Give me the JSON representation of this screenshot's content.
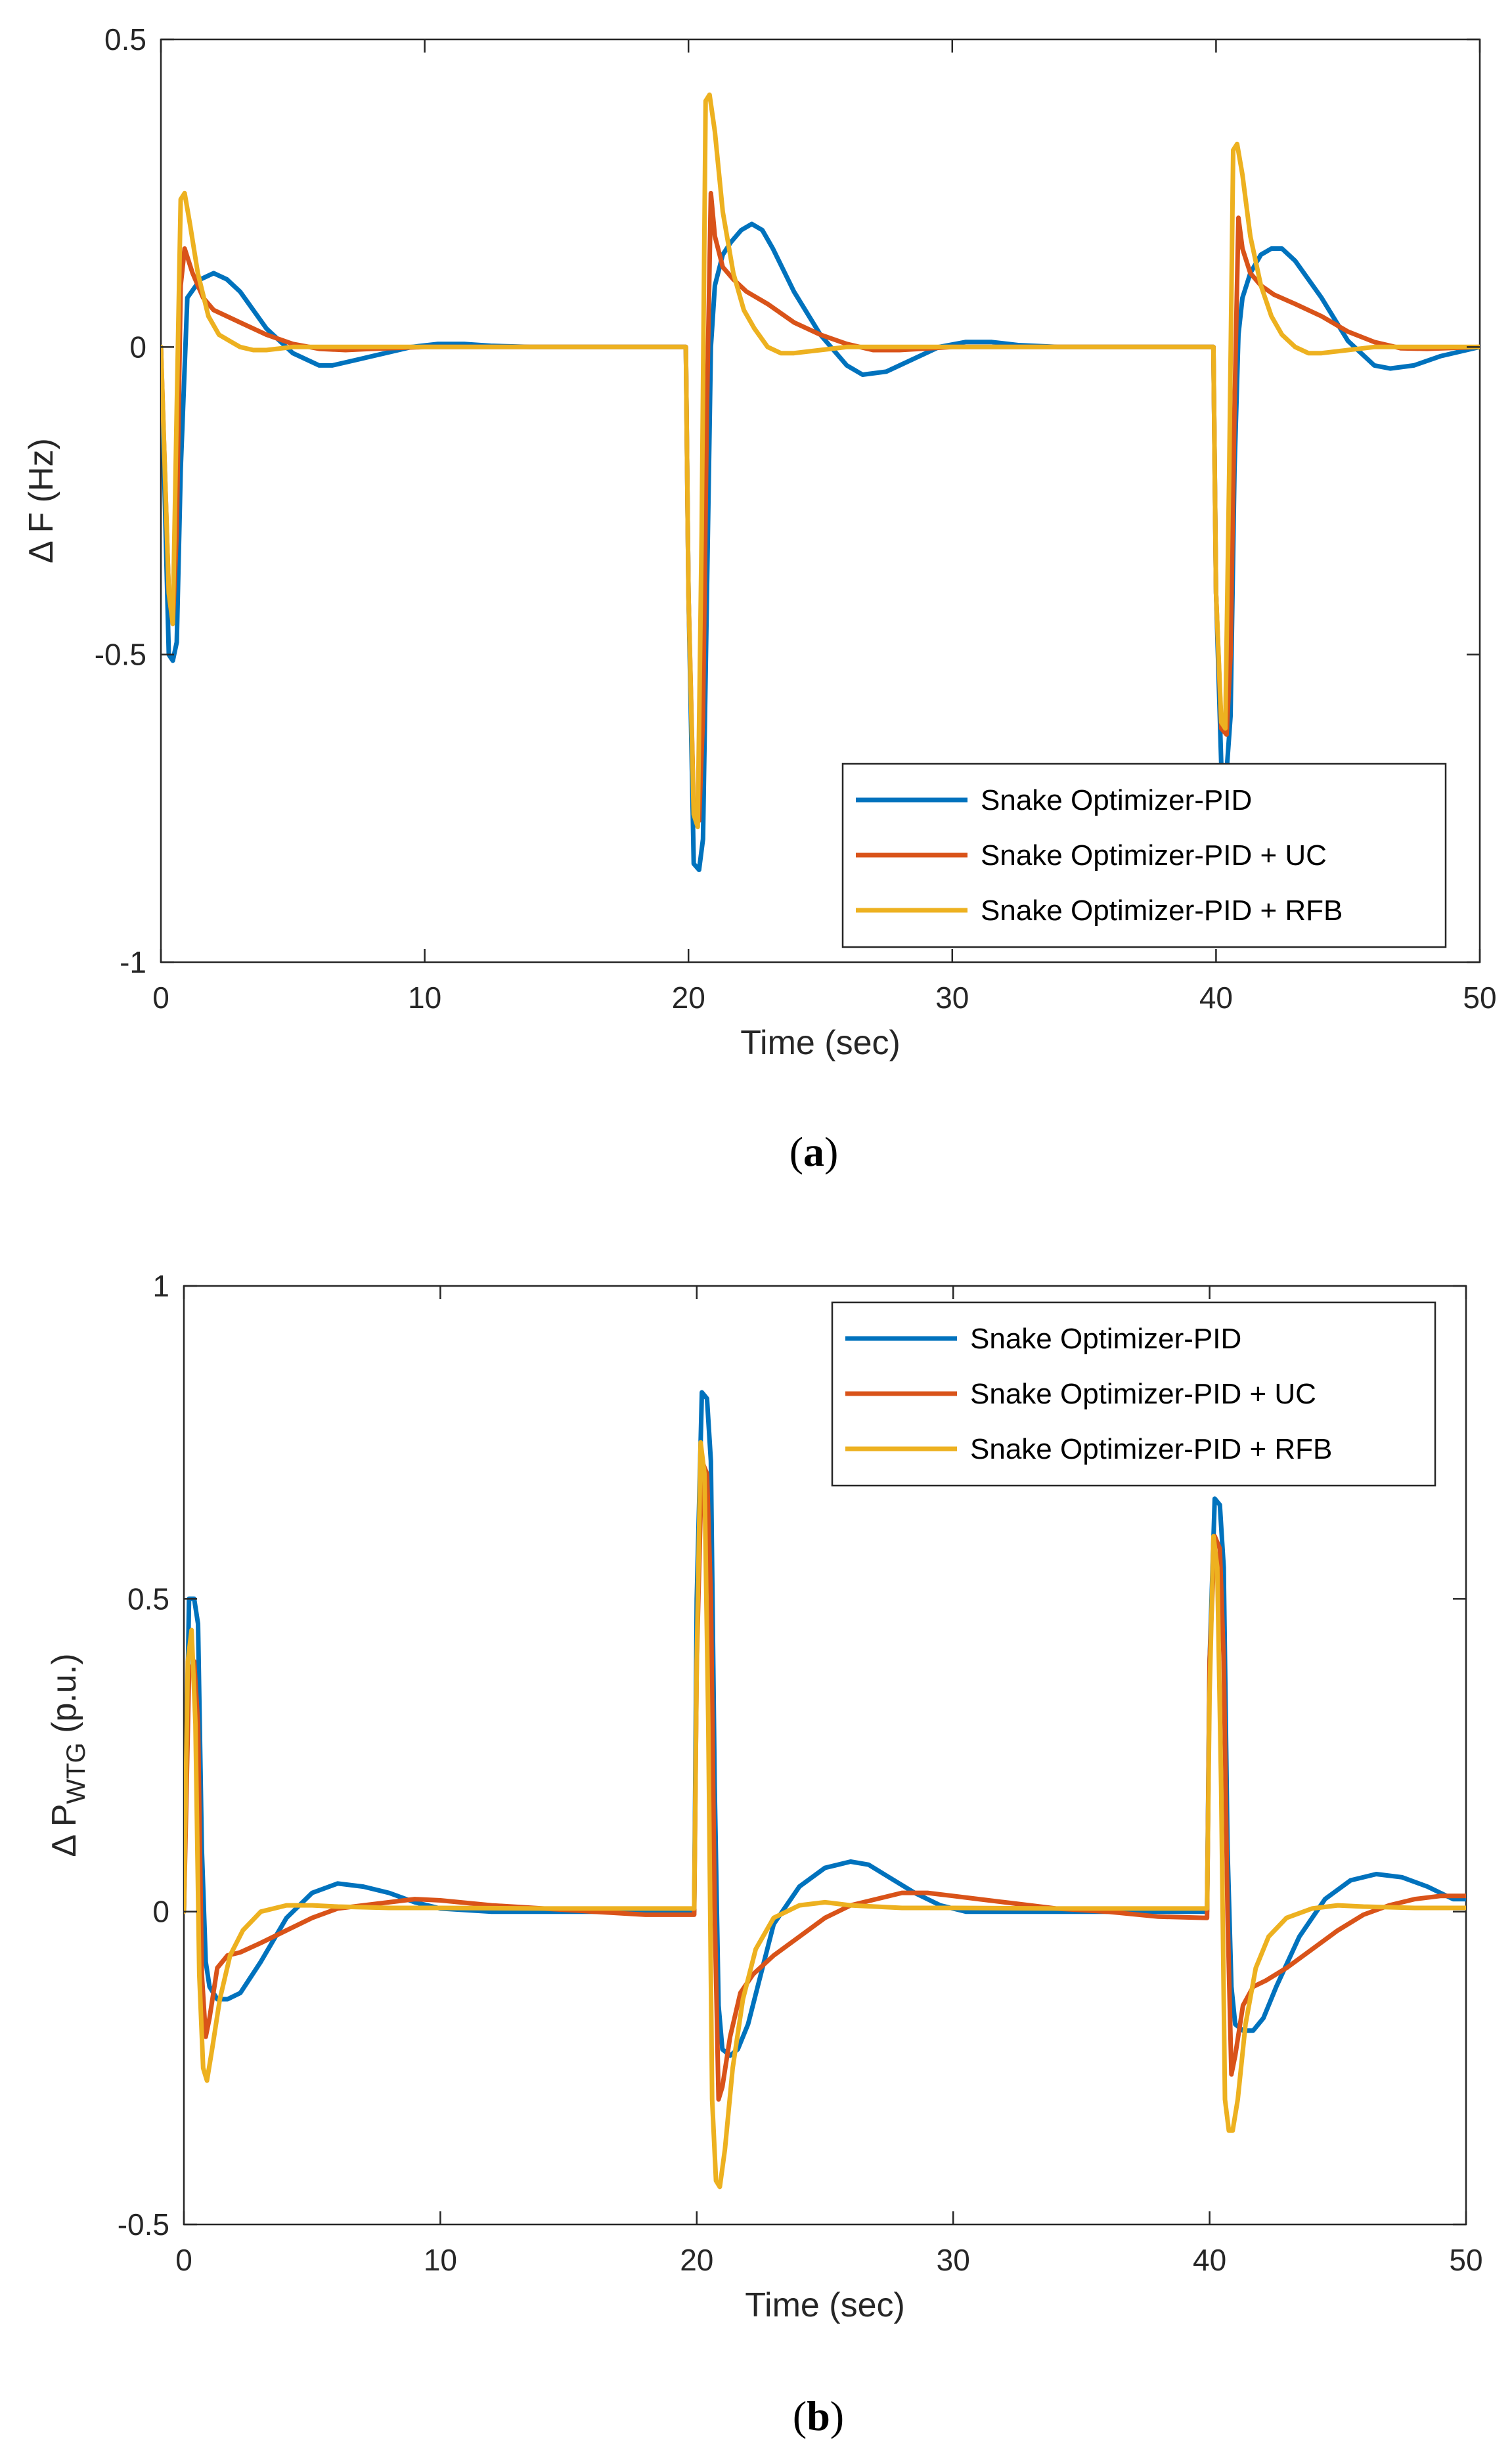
{
  "chart_data": [
    {
      "type": "line",
      "panel_label_open": "(",
      "panel_label_letter": "a",
      "panel_label_close": ")",
      "xlabel": "Time (sec)",
      "ylabel": "Δ F (Hz)",
      "ylabel_sub": "",
      "xlim": [
        0,
        50
      ],
      "ylim": [
        -1,
        0.5
      ],
      "xticks": [
        0,
        10,
        20,
        30,
        40,
        50
      ],
      "xtick_labels": [
        "0",
        "10",
        "20",
        "30",
        "40",
        "50"
      ],
      "yticks": [
        -1,
        -0.5,
        0,
        0.5
      ],
      "ytick_labels": [
        "-1",
        "-0.5",
        "0",
        "0.5"
      ],
      "legend_position": "bottom-right",
      "series": [
        {
          "name": "Snake Optimizer-PID",
          "color": "#0072BD",
          "x": [
            0,
            0.3,
            0.45,
            0.6,
            0.75,
            1.0,
            1.5,
            2.0,
            2.5,
            3.0,
            3.5,
            4.0,
            5.0,
            6.0,
            6.5,
            7.5,
            8.5,
            9.5,
            10.5,
            11.5,
            12.5,
            14,
            16,
            18,
            19.9,
            20.0,
            20.2,
            20.4,
            20.55,
            20.7,
            20.85,
            21.0,
            21.3,
            21.6,
            22.0,
            22.4,
            22.8,
            23.2,
            24,
            25,
            26,
            26.6,
            27.5,
            28.5,
            29.5,
            30.5,
            31.5,
            32.5,
            34,
            36,
            38,
            39.9,
            40.0,
            40.2,
            40.4,
            40.55,
            40.7,
            40.85,
            41.0,
            41.3,
            41.7,
            42.1,
            42.5,
            43,
            44,
            45,
            46,
            46.6,
            47.5,
            48.5,
            49.5,
            50
          ],
          "y": [
            0,
            -0.5,
            -0.51,
            -0.48,
            -0.2,
            0.08,
            0.11,
            0.12,
            0.11,
            0.09,
            0.06,
            0.03,
            -0.01,
            -0.03,
            -0.03,
            -0.02,
            -0.01,
            0.0,
            0.005,
            0.005,
            0.002,
            0,
            0,
            0,
            0,
            -0.4,
            -0.84,
            -0.85,
            -0.8,
            -0.4,
            0.0,
            0.1,
            0.15,
            0.17,
            0.19,
            0.2,
            0.19,
            0.16,
            0.09,
            0.02,
            -0.03,
            -0.045,
            -0.04,
            -0.02,
            0.0,
            0.008,
            0.008,
            0.003,
            0,
            0,
            0,
            0,
            -0.4,
            -0.68,
            -0.69,
            -0.6,
            -0.2,
            0.02,
            0.08,
            0.12,
            0.15,
            0.16,
            0.16,
            0.14,
            0.08,
            0.01,
            -0.03,
            -0.035,
            -0.03,
            -0.015,
            -0.005,
            0
          ]
        },
        {
          "name": "Snake Optimizer-PID + UC",
          "color": "#D95319",
          "x": [
            0,
            0.3,
            0.45,
            0.6,
            0.75,
            0.9,
            1.2,
            1.6,
            2.0,
            3.0,
            4.0,
            5.0,
            6.0,
            7.0,
            8.0,
            10,
            14,
            18,
            19.9,
            20.0,
            20.2,
            20.4,
            20.55,
            20.7,
            20.85,
            21.0,
            21.3,
            21.7,
            22.2,
            23,
            24,
            25,
            26,
            27,
            28,
            30,
            34,
            38,
            39.9,
            40.0,
            40.2,
            40.4,
            40.55,
            40.7,
            40.85,
            41.0,
            41.3,
            41.7,
            42.2,
            43,
            44,
            45,
            46,
            47,
            48,
            50
          ],
          "y": [
            0,
            -0.4,
            -0.45,
            -0.3,
            0.1,
            0.16,
            0.12,
            0.08,
            0.06,
            0.04,
            0.02,
            0.005,
            -0.003,
            -0.005,
            -0.003,
            0,
            0,
            0,
            0,
            -0.4,
            -0.75,
            -0.77,
            -0.6,
            -0.1,
            0.25,
            0.18,
            0.13,
            0.11,
            0.09,
            0.07,
            0.04,
            0.02,
            0.005,
            -0.005,
            -0.005,
            0,
            0,
            0,
            0,
            -0.4,
            -0.62,
            -0.63,
            -0.5,
            -0.1,
            0.21,
            0.16,
            0.12,
            0.1,
            0.085,
            0.07,
            0.05,
            0.025,
            0.008,
            -0.002,
            -0.003,
            0
          ]
        },
        {
          "name": "Snake Optimizer-PID + RFB",
          "color": "#EDB120",
          "x": [
            0,
            0.3,
            0.45,
            0.6,
            0.75,
            0.9,
            1.1,
            1.4,
            1.8,
            2.2,
            2.6,
            3.0,
            3.5,
            4.0,
            5.0,
            6.0,
            8,
            10,
            14,
            18,
            19.9,
            20.0,
            20.2,
            20.35,
            20.5,
            20.65,
            20.8,
            21.0,
            21.3,
            21.7,
            22.1,
            22.5,
            23,
            23.5,
            24,
            25,
            26,
            28,
            30,
            34,
            38,
            39.9,
            40.0,
            40.2,
            40.35,
            40.5,
            40.65,
            40.8,
            41.0,
            41.3,
            41.7,
            42.1,
            42.5,
            43,
            43.5,
            44,
            45,
            46,
            48,
            50
          ],
          "y": [
            0,
            -0.4,
            -0.45,
            -0.1,
            0.24,
            0.25,
            0.2,
            0.12,
            0.05,
            0.02,
            0.01,
            0.0,
            -0.005,
            -0.005,
            0,
            0,
            0,
            0,
            0,
            0,
            0,
            -0.4,
            -0.76,
            -0.78,
            -0.3,
            0.4,
            0.41,
            0.35,
            0.22,
            0.12,
            0.06,
            0.03,
            0.0,
            -0.01,
            -0.01,
            -0.005,
            0,
            0,
            0,
            0,
            0,
            0,
            -0.4,
            -0.61,
            -0.62,
            -0.2,
            0.32,
            0.33,
            0.28,
            0.18,
            0.1,
            0.05,
            0.02,
            0.0,
            -0.01,
            -0.01,
            -0.005,
            0,
            0,
            0
          ]
        }
      ]
    },
    {
      "type": "line",
      "panel_label_open": "(",
      "panel_label_letter": "b",
      "panel_label_close": ")",
      "xlabel": "Time (sec)",
      "ylabel": "Δ P",
      "ylabel_sub": "WTG",
      "ylabel_after": " (p.u.)",
      "xlim": [
        0,
        50
      ],
      "ylim": [
        -0.5,
        1
      ],
      "xticks": [
        0,
        10,
        20,
        30,
        40,
        50
      ],
      "xtick_labels": [
        "0",
        "10",
        "20",
        "30",
        "40",
        "50"
      ],
      "yticks": [
        -0.5,
        0,
        0.5,
        1
      ],
      "ytick_labels": [
        "-0.5",
        "0",
        "0.5",
        "1"
      ],
      "legend_position": "top-right",
      "series": [
        {
          "name": "Snake Optimizer-PID",
          "color": "#0072BD",
          "x": [
            0,
            0.2,
            0.4,
            0.55,
            0.7,
            0.85,
            1.0,
            1.3,
            1.7,
            2.2,
            3,
            4,
            5,
            6,
            7,
            8,
            9,
            10,
            12,
            14,
            16,
            18,
            19.9,
            20.0,
            20.2,
            20.4,
            20.55,
            20.7,
            20.85,
            21.0,
            21.3,
            21.6,
            22,
            22.5,
            23,
            24,
            25,
            26,
            26.7,
            27.5,
            28.5,
            29.5,
            30.5,
            32,
            34,
            36,
            38,
            39.9,
            40.0,
            40.2,
            40.4,
            40.55,
            40.7,
            40.85,
            41.0,
            41.3,
            41.7,
            42.1,
            42.6,
            43.5,
            44.5,
            45.5,
            46.5,
            47.5,
            48.5,
            49.5,
            50
          ],
          "y": [
            0,
            0.5,
            0.5,
            0.46,
            0.1,
            -0.08,
            -0.12,
            -0.14,
            -0.14,
            -0.13,
            -0.08,
            -0.01,
            0.03,
            0.045,
            0.04,
            0.03,
            0.015,
            0.005,
            0,
            0,
            0,
            0,
            0,
            0.5,
            0.83,
            0.82,
            0.72,
            0.2,
            -0.15,
            -0.22,
            -0.23,
            -0.22,
            -0.18,
            -0.1,
            -0.02,
            0.04,
            0.07,
            0.08,
            0.075,
            0.055,
            0.03,
            0.01,
            0,
            0,
            0,
            0,
            0,
            0,
            0.4,
            0.66,
            0.65,
            0.55,
            0.1,
            -0.12,
            -0.18,
            -0.19,
            -0.19,
            -0.17,
            -0.12,
            -0.04,
            0.02,
            0.05,
            0.06,
            0.055,
            0.04,
            0.02,
            0.02
          ]
        },
        {
          "name": "Snake Optimizer-PID + UC",
          "color": "#D95319",
          "x": [
            0,
            0.2,
            0.4,
            0.55,
            0.7,
            0.85,
            1.0,
            1.3,
            1.7,
            2.2,
            3,
            4,
            5,
            6,
            7,
            8,
            9,
            10,
            12,
            14,
            16,
            18,
            19.9,
            20.0,
            20.2,
            20.4,
            20.55,
            20.7,
            20.85,
            21.0,
            21.3,
            21.7,
            22.2,
            23,
            24,
            25,
            26,
            27,
            28,
            29,
            30,
            31,
            32,
            34,
            36,
            38,
            39.9,
            40.0,
            40.2,
            40.4,
            40.55,
            40.7,
            40.85,
            41.0,
            41.3,
            41.7,
            42.2,
            43,
            44,
            45,
            46,
            47,
            48,
            49,
            50
          ],
          "y": [
            0,
            0.38,
            0.4,
            0.3,
            -0.1,
            -0.2,
            -0.17,
            -0.09,
            -0.07,
            -0.065,
            -0.05,
            -0.03,
            -0.01,
            0.005,
            0.01,
            0.015,
            0.02,
            0.018,
            0.01,
            0.005,
            0,
            -0.005,
            -0.005,
            0.4,
            0.72,
            0.7,
            0.5,
            0,
            -0.3,
            -0.28,
            -0.2,
            -0.13,
            -0.1,
            -0.07,
            -0.04,
            -0.01,
            0.01,
            0.02,
            0.03,
            0.03,
            0.025,
            0.02,
            0.015,
            0.005,
            0,
            -0.008,
            -0.01,
            0.4,
            0.6,
            0.58,
            0.4,
            0,
            -0.26,
            -0.23,
            -0.15,
            -0.12,
            -0.11,
            -0.09,
            -0.06,
            -0.03,
            -0.005,
            0.01,
            0.02,
            0.025,
            0.025
          ]
        },
        {
          "name": "Snake Optimizer-PID + RFB",
          "color": "#EDB120",
          "x": [
            0,
            0.15,
            0.3,
            0.45,
            0.6,
            0.75,
            0.9,
            1.1,
            1.4,
            1.8,
            2.3,
            3,
            4,
            5,
            6,
            8,
            10,
            14,
            18,
            19.9,
            20.0,
            20.15,
            20.3,
            20.45,
            20.6,
            20.75,
            20.9,
            21.1,
            21.4,
            21.8,
            22.3,
            23,
            24,
            25,
            26,
            28,
            30,
            34,
            38,
            39.9,
            40.0,
            40.15,
            40.3,
            40.45,
            40.6,
            40.75,
            40.9,
            41.1,
            41.4,
            41.8,
            42.3,
            43,
            44,
            45,
            46,
            48,
            50
          ],
          "y": [
            0,
            0.4,
            0.45,
            0.3,
            -0.1,
            -0.25,
            -0.27,
            -0.22,
            -0.14,
            -0.07,
            -0.03,
            0.0,
            0.01,
            0.01,
            0.008,
            0.006,
            0.006,
            0.005,
            0.005,
            0.005,
            0.4,
            0.75,
            0.7,
            0.3,
            -0.3,
            -0.43,
            -0.44,
            -0.38,
            -0.25,
            -0.14,
            -0.06,
            -0.01,
            0.01,
            0.015,
            0.01,
            0.006,
            0.006,
            0.005,
            0.005,
            0.005,
            0.35,
            0.6,
            0.55,
            0.2,
            -0.3,
            -0.35,
            -0.35,
            -0.3,
            -0.18,
            -0.09,
            -0.04,
            -0.01,
            0.005,
            0.01,
            0.008,
            0.006,
            0.006
          ]
        }
      ]
    }
  ]
}
